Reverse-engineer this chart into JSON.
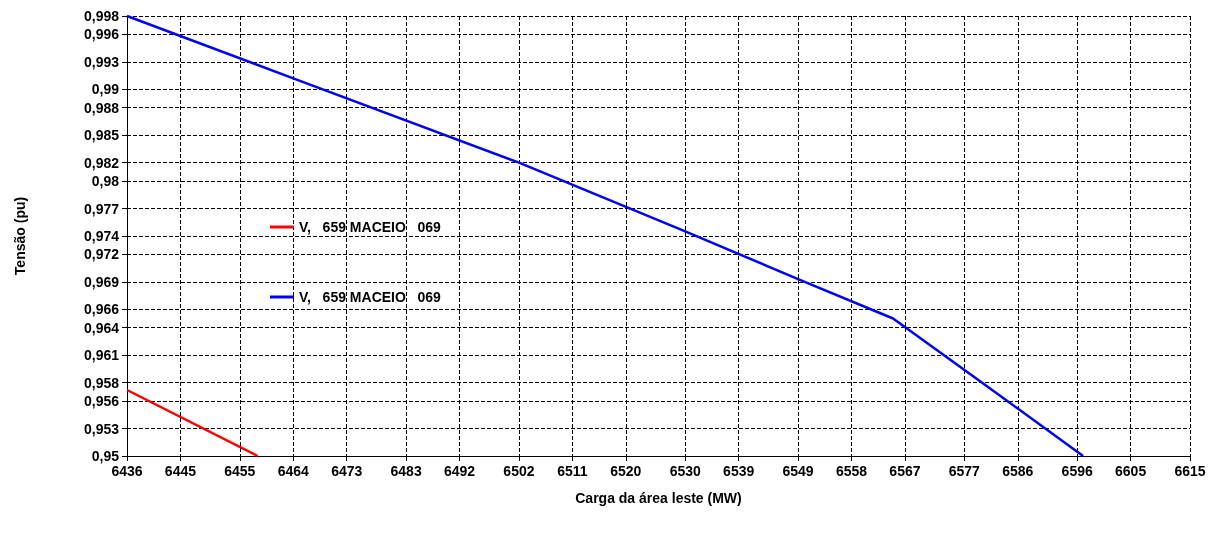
{
  "chart_data": {
    "type": "line",
    "xlabel": "Carga da área leste (MW)",
    "ylabel": "Tensão (pu)",
    "xlim": [
      6436,
      6615
    ],
    "xticks": [
      6436,
      6445,
      6455,
      6464,
      6473,
      6483,
      6492,
      6502,
      6511,
      6520,
      6530,
      6539,
      6549,
      6558,
      6567,
      6577,
      6586,
      6596,
      6605,
      6615
    ],
    "ylim": [
      0.95,
      0.998
    ],
    "yticks": [
      {
        "value": 0.95,
        "label": "0,95"
      },
      {
        "value": 0.953,
        "label": "0,953"
      },
      {
        "value": 0.956,
        "label": "0,956"
      },
      {
        "value": 0.958,
        "label": "0,958"
      },
      {
        "value": 0.961,
        "label": "0,961"
      },
      {
        "value": 0.964,
        "label": "0,964"
      },
      {
        "value": 0.966,
        "label": "0,966"
      },
      {
        "value": 0.969,
        "label": "0,969"
      },
      {
        "value": 0.972,
        "label": "0,972"
      },
      {
        "value": 0.974,
        "label": "0,974"
      },
      {
        "value": 0.977,
        "label": "0,977"
      },
      {
        "value": 0.98,
        "label": "0,98"
      },
      {
        "value": 0.982,
        "label": "0,982"
      },
      {
        "value": 0.985,
        "label": "0,985"
      },
      {
        "value": 0.988,
        "label": "0,988"
      },
      {
        "value": 0.99,
        "label": "0,99"
      },
      {
        "value": 0.993,
        "label": "0,993"
      },
      {
        "value": 0.996,
        "label": "0,996"
      },
      {
        "value": 0.998,
        "label": "0,998"
      }
    ],
    "series": [
      {
        "name": "V,   659 MACEIO   069",
        "color": "#ff0000",
        "x": [
          6436,
          6458
        ],
        "values": [
          0.9572,
          0.95
        ]
      },
      {
        "name": "V,   659 MACEIO   069",
        "color": "#0000ff",
        "x": [
          6436,
          6464,
          6502,
          6530,
          6549,
          6565,
          6580,
          6597
        ],
        "values": [
          0.998,
          0.9912,
          0.982,
          0.9745,
          0.9693,
          0.965,
          0.958,
          0.95
        ]
      }
    ],
    "grid": true,
    "legend": "left",
    "marker": "none",
    "line_style": "solid"
  }
}
